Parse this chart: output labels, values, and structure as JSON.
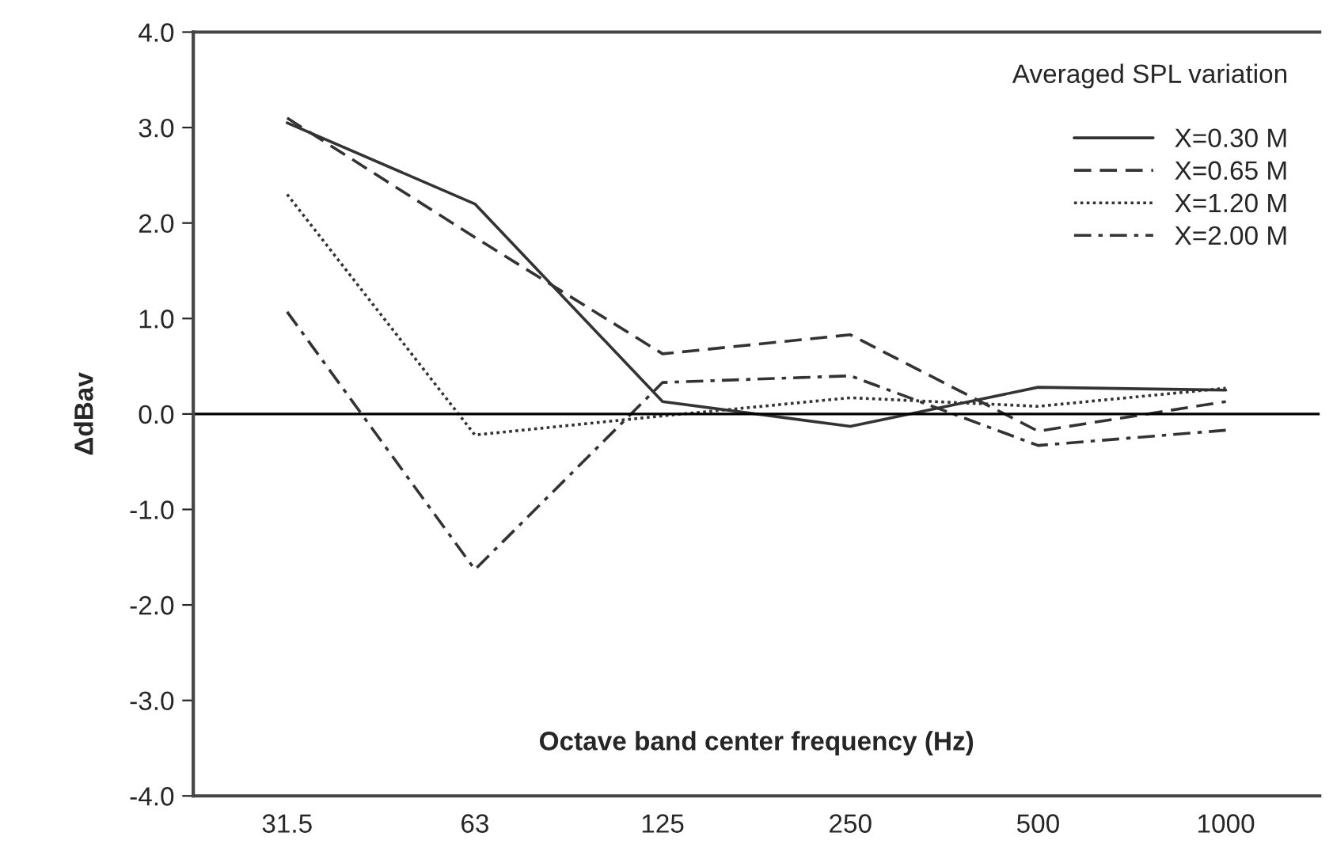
{
  "chart_data": {
    "type": "line",
    "xlabel": "Octave band center frequency (Hz)",
    "ylabel": "ΔdBav",
    "legend_title": "Averaged SPL variation",
    "categories": [
      "31.5",
      "63",
      "125",
      "250",
      "500",
      "1000"
    ],
    "series": [
      {
        "name": "X=0.30 M",
        "color": "#333333",
        "line_style": "solid",
        "values": [
          3.05,
          2.2,
          0.13,
          -0.13,
          0.28,
          0.25
        ]
      },
      {
        "name": "X=0.65 M",
        "color": "#333333",
        "line_style": "dashed",
        "values": [
          3.1,
          1.85,
          0.63,
          0.83,
          -0.18,
          0.13
        ]
      },
      {
        "name": "X=1.20 M",
        "color": "#333333",
        "line_style": "dotted",
        "values": [
          2.3,
          -0.22,
          -0.02,
          0.17,
          0.08,
          0.27
        ]
      },
      {
        "name": "X=2.00 M",
        "color": "#333333",
        "line_style": "dashdot",
        "values": [
          1.07,
          -1.63,
          0.33,
          0.4,
          -0.33,
          -0.17
        ]
      }
    ],
    "ylim": [
      -4.0,
      4.0
    ],
    "yticks": [
      {
        "value": -4,
        "label": "-4.0"
      },
      {
        "value": -3,
        "label": "-3.0"
      },
      {
        "value": -2,
        "label": "-2.0"
      },
      {
        "value": -1,
        "label": "-1.0"
      },
      {
        "value": 0,
        "label": "0.0"
      },
      {
        "value": 1,
        "label": "1.0"
      },
      {
        "value": 2,
        "label": "2.0"
      },
      {
        "value": 3,
        "label": "3.0"
      },
      {
        "value": 4,
        "label": "4.0"
      }
    ],
    "ref_lines": [
      {
        "axis": "y",
        "value": 0,
        "color": "#000000"
      }
    ],
    "grid": false,
    "legend": "top right",
    "marker": "none"
  }
}
